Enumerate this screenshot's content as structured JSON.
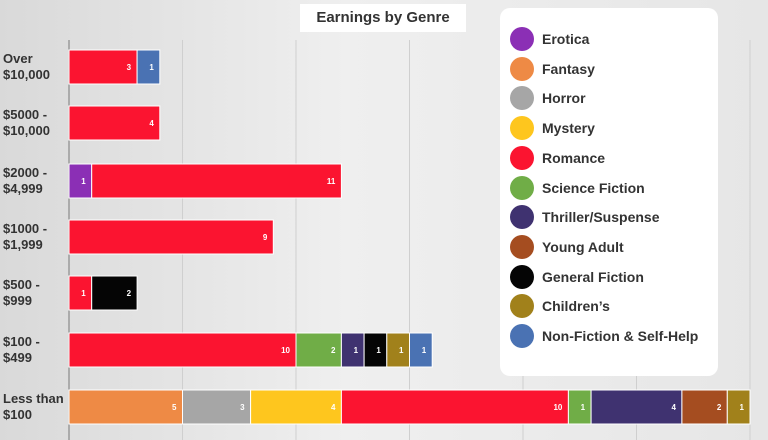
{
  "chart_data": {
    "type": "bar",
    "orientation": "horizontal",
    "stacked": true,
    "title": "Earnings by Genre",
    "categories": [
      {
        "line1": "Over",
        "line2": "$10,000"
      },
      {
        "line1": "$5000 -",
        "line2": "$10,000"
      },
      {
        "line1": "$2000 -",
        "line2": "$4,999"
      },
      {
        "line1": "$1000 -",
        "line2": "$1,999"
      },
      {
        "line1": "$500 -",
        "line2": "$999"
      },
      {
        "line1": "$100 -",
        "line2": "$499"
      },
      {
        "line1": "Less than",
        "line2": "$100"
      }
    ],
    "series": [
      {
        "name": "Erotica",
        "color": "#8b2fb5",
        "values": [
          0,
          0,
          1,
          0,
          0,
          0,
          0
        ]
      },
      {
        "name": "Fantasy",
        "color": "#ee8a45",
        "values": [
          0,
          0,
          0,
          0,
          0,
          0,
          5
        ]
      },
      {
        "name": "Horror",
        "color": "#a6a6a6",
        "values": [
          0,
          0,
          0,
          0,
          0,
          0,
          3
        ]
      },
      {
        "name": "Mystery",
        "color": "#fec61e",
        "values": [
          0,
          0,
          0,
          0,
          0,
          0,
          4
        ]
      },
      {
        "name": "Romance",
        "color": "#fb1430",
        "values": [
          3,
          4,
          11,
          9,
          1,
          10,
          10
        ]
      },
      {
        "name": "Science Fiction",
        "color": "#70ad47",
        "values": [
          0,
          0,
          0,
          0,
          0,
          2,
          1
        ]
      },
      {
        "name": "Thriller/Suspense",
        "color": "#3f3270",
        "values": [
          0,
          0,
          0,
          0,
          0,
          1,
          4
        ]
      },
      {
        "name": "Young Adult",
        "color": "#a54d20",
        "values": [
          0,
          0,
          0,
          0,
          0,
          0,
          2
        ]
      },
      {
        "name": "General Fiction",
        "color": "#050505",
        "values": [
          0,
          0,
          0,
          0,
          2,
          1,
          0
        ]
      },
      {
        "name": "Children’s",
        "color": "#a1811b",
        "values": [
          0,
          0,
          0,
          0,
          0,
          1,
          1
        ]
      },
      {
        "name": "Non-Fiction & Self-Help",
        "color": "#4a72b3",
        "values": [
          1,
          0,
          0,
          0,
          0,
          1,
          0
        ]
      }
    ],
    "xlim": [
      0,
      30
    ],
    "grid": true,
    "legend_position": "right"
  }
}
